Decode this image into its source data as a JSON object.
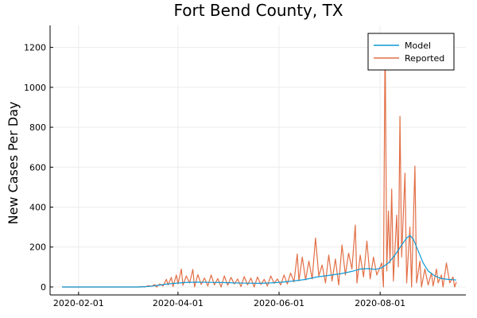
{
  "chart_data": {
    "type": "line",
    "title": "Fort Bend County, TX",
    "xlabel": "",
    "ylabel": "New Cases Per Day",
    "x_axis": {
      "type": "date",
      "start": "2020-01-22",
      "end": "2020-09-16",
      "ticks": [
        "2020-02-01",
        "2020-04-01",
        "2020-06-01",
        "2020-08-01"
      ]
    },
    "ylim": [
      -40,
      1310
    ],
    "yticks": [
      0,
      200,
      400,
      600,
      800,
      1000,
      1200
    ],
    "grid": true,
    "legend": {
      "position": "top-right"
    },
    "series": [
      {
        "name": "Model",
        "color": "#0f9ad6",
        "points": [
          [
            "2020-01-22",
            0
          ],
          [
            "2020-03-09",
            0
          ],
          [
            "2020-03-15",
            3
          ],
          [
            "2020-03-20",
            8
          ],
          [
            "2020-03-25",
            14
          ],
          [
            "2020-03-30",
            18
          ],
          [
            "2020-04-05",
            22
          ],
          [
            "2020-04-12",
            24
          ],
          [
            "2020-04-20",
            23
          ],
          [
            "2020-04-28",
            22
          ],
          [
            "2020-05-05",
            20
          ],
          [
            "2020-05-12",
            19
          ],
          [
            "2020-05-20",
            18
          ],
          [
            "2020-05-27",
            20
          ],
          [
            "2020-06-03",
            24
          ],
          [
            "2020-06-10",
            30
          ],
          [
            "2020-06-17",
            38
          ],
          [
            "2020-06-24",
            50
          ],
          [
            "2020-07-01",
            58
          ],
          [
            "2020-07-08",
            66
          ],
          [
            "2020-07-15",
            78
          ],
          [
            "2020-07-20",
            90
          ],
          [
            "2020-07-25",
            92
          ],
          [
            "2020-07-29",
            88
          ],
          [
            "2020-08-02",
            96
          ],
          [
            "2020-08-06",
            120
          ],
          [
            "2020-08-10",
            160
          ],
          [
            "2020-08-14",
            210
          ],
          [
            "2020-08-17",
            245
          ],
          [
            "2020-08-19",
            258
          ],
          [
            "2020-08-21",
            240
          ],
          [
            "2020-08-24",
            180
          ],
          [
            "2020-08-27",
            120
          ],
          [
            "2020-08-30",
            80
          ],
          [
            "2020-09-03",
            55
          ],
          [
            "2020-09-07",
            42
          ],
          [
            "2020-09-11",
            38
          ],
          [
            "2020-09-16",
            35
          ]
        ]
      },
      {
        "name": "Reported",
        "color": "#e26f46",
        "points": [
          [
            "2020-01-22",
            0
          ],
          [
            "2020-03-08",
            0
          ],
          [
            "2020-03-10",
            2
          ],
          [
            "2020-03-12",
            0
          ],
          [
            "2020-03-14",
            6
          ],
          [
            "2020-03-16",
            3
          ],
          [
            "2020-03-18",
            12
          ],
          [
            "2020-03-19",
            0
          ],
          [
            "2020-03-21",
            15
          ],
          [
            "2020-03-23",
            5
          ],
          [
            "2020-03-25",
            38
          ],
          [
            "2020-03-26",
            10
          ],
          [
            "2020-03-28",
            48
          ],
          [
            "2020-03-29",
            2
          ],
          [
            "2020-03-31",
            60
          ],
          [
            "2020-04-01",
            15
          ],
          [
            "2020-04-03",
            90
          ],
          [
            "2020-04-04",
            8
          ],
          [
            "2020-04-06",
            55
          ],
          [
            "2020-04-08",
            20
          ],
          [
            "2020-04-10",
            88
          ],
          [
            "2020-04-11",
            0
          ],
          [
            "2020-04-13",
            62
          ],
          [
            "2020-04-15",
            12
          ],
          [
            "2020-04-17",
            45
          ],
          [
            "2020-04-19",
            5
          ],
          [
            "2020-04-21",
            60
          ],
          [
            "2020-04-23",
            10
          ],
          [
            "2020-04-25",
            42
          ],
          [
            "2020-04-27",
            0
          ],
          [
            "2020-04-29",
            55
          ],
          [
            "2020-05-01",
            8
          ],
          [
            "2020-05-03",
            48
          ],
          [
            "2020-05-05",
            15
          ],
          [
            "2020-05-07",
            40
          ],
          [
            "2020-05-09",
            2
          ],
          [
            "2020-05-11",
            52
          ],
          [
            "2020-05-13",
            10
          ],
          [
            "2020-05-15",
            45
          ],
          [
            "2020-05-17",
            0
          ],
          [
            "2020-05-19",
            50
          ],
          [
            "2020-05-21",
            12
          ],
          [
            "2020-05-23",
            38
          ],
          [
            "2020-05-25",
            5
          ],
          [
            "2020-05-27",
            55
          ],
          [
            "2020-05-29",
            18
          ],
          [
            "2020-05-31",
            40
          ],
          [
            "2020-06-02",
            10
          ],
          [
            "2020-06-04",
            60
          ],
          [
            "2020-06-06",
            15
          ],
          [
            "2020-06-08",
            70
          ],
          [
            "2020-06-10",
            25
          ],
          [
            "2020-06-12",
            165
          ],
          [
            "2020-06-13",
            30
          ],
          [
            "2020-06-15",
            150
          ],
          [
            "2020-06-17",
            35
          ],
          [
            "2020-06-19",
            130
          ],
          [
            "2020-06-21",
            40
          ],
          [
            "2020-06-23",
            245
          ],
          [
            "2020-06-25",
            55
          ],
          [
            "2020-06-27",
            110
          ],
          [
            "2020-06-29",
            20
          ],
          [
            "2020-07-01",
            160
          ],
          [
            "2020-07-03",
            30
          ],
          [
            "2020-07-05",
            140
          ],
          [
            "2020-07-07",
            10
          ],
          [
            "2020-07-09",
            210
          ],
          [
            "2020-07-11",
            60
          ],
          [
            "2020-07-13",
            170
          ],
          [
            "2020-07-15",
            90
          ],
          [
            "2020-07-17",
            310
          ],
          [
            "2020-07-18",
            20
          ],
          [
            "2020-07-20",
            160
          ],
          [
            "2020-07-22",
            50
          ],
          [
            "2020-07-24",
            230
          ],
          [
            "2020-07-26",
            40
          ],
          [
            "2020-07-28",
            150
          ],
          [
            "2020-07-30",
            60
          ],
          [
            "2020-08-02",
            120
          ],
          [
            "2020-08-03",
            0
          ],
          [
            "2020-08-04",
            1260
          ],
          [
            "2020-08-05",
            80
          ],
          [
            "2020-08-06",
            380
          ],
          [
            "2020-08-07",
            120
          ],
          [
            "2020-08-08",
            490
          ],
          [
            "2020-08-09",
            30
          ],
          [
            "2020-08-11",
            360
          ],
          [
            "2020-08-12",
            100
          ],
          [
            "2020-08-13",
            855
          ],
          [
            "2020-08-14",
            150
          ],
          [
            "2020-08-16",
            570
          ],
          [
            "2020-08-17",
            20
          ],
          [
            "2020-08-19",
            300
          ],
          [
            "2020-08-20",
            0
          ],
          [
            "2020-08-22",
            605
          ],
          [
            "2020-08-23",
            20
          ],
          [
            "2020-08-25",
            130
          ],
          [
            "2020-08-26",
            0
          ],
          [
            "2020-08-28",
            90
          ],
          [
            "2020-08-30",
            10
          ],
          [
            "2020-09-01",
            70
          ],
          [
            "2020-09-02",
            5
          ],
          [
            "2020-09-04",
            90
          ],
          [
            "2020-09-05",
            20
          ],
          [
            "2020-09-07",
            60
          ],
          [
            "2020-09-08",
            0
          ],
          [
            "2020-09-10",
            120
          ],
          [
            "2020-09-12",
            20
          ],
          [
            "2020-09-14",
            50
          ],
          [
            "2020-09-15",
            0
          ],
          [
            "2020-09-16",
            25
          ]
        ]
      }
    ]
  }
}
